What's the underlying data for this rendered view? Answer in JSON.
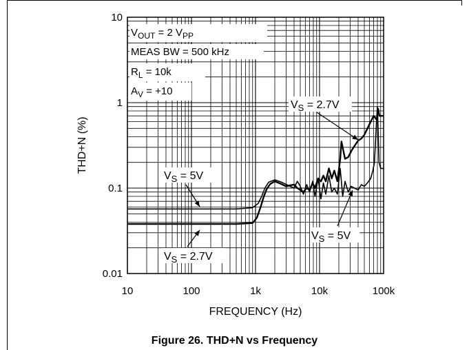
{
  "figure": {
    "caption": "Figure 26. THD+N vs Frequency"
  },
  "chart_data": {
    "type": "line",
    "xlabel": "FREQUENCY (Hz)",
    "ylabel": "THD+N (%)",
    "x_scale": "log",
    "y_scale": "log",
    "xlim": [
      10,
      100000
    ],
    "ylim": [
      0.01,
      10
    ],
    "x_ticks": [
      "10",
      "100",
      "1k",
      "10k",
      "100k"
    ],
    "y_ticks": [
      "0.01",
      "0.1",
      "1",
      "10"
    ],
    "grid": true,
    "conditions": [
      {
        "main": "V",
        "sub": "OUT",
        "rest": " = 2 V",
        "sub2": "PP"
      },
      {
        "main": "MEAS BW = 500 kHz",
        "sub": "",
        "rest": "",
        "sub2": ""
      },
      {
        "main": "R",
        "sub": "L",
        "rest": " = 10k",
        "sub2": ""
      },
      {
        "main": "A",
        "sub": "V",
        "rest": " = +10",
        "sub2": ""
      }
    ],
    "series": [
      {
        "label_main": "V",
        "label_sub": "S",
        "label_rest": " = 5V",
        "x": [
          10,
          100,
          500,
          900,
          1100,
          1250,
          1400,
          1600,
          2000,
          2500,
          3200,
          4000,
          4500,
          5000,
          5600,
          6300,
          7000,
          7800,
          8500,
          9500,
          10500,
          11500,
          12500,
          14000,
          15500,
          17000,
          19000,
          21000,
          23000,
          25000,
          28000,
          31000,
          35000,
          40000,
          45000,
          50000,
          56000,
          63000,
          68000,
          72000,
          76000,
          80000,
          85000,
          90000,
          100000
        ],
        "y": [
          0.057,
          0.057,
          0.057,
          0.059,
          0.066,
          0.08,
          0.1,
          0.117,
          0.125,
          0.118,
          0.108,
          0.1,
          0.12,
          0.105,
          0.085,
          0.11,
          0.09,
          0.12,
          0.08,
          0.13,
          0.075,
          0.115,
          0.085,
          0.14,
          0.09,
          0.1,
          0.085,
          0.17,
          0.08,
          0.12,
          0.09,
          0.105,
          0.1,
          0.095,
          0.11,
          0.105,
          0.115,
          0.13,
          0.16,
          0.2,
          0.45,
          0.9,
          0.2,
          0.17,
          0.17
        ]
      },
      {
        "label_main": "V",
        "label_sub": "S",
        "label_rest": " = 2.7V",
        "x": [
          10,
          100,
          500,
          900,
          1050,
          1200,
          1350,
          1500,
          1700,
          2000,
          2500,
          3000,
          3500,
          4000,
          4500,
          5000,
          5600,
          6300,
          7000,
          7800,
          8500,
          9500,
          10500,
          11500,
          12500,
          14000,
          15500,
          17000,
          19000,
          21000,
          22000,
          25000,
          28000,
          32000,
          36000,
          40000,
          45000,
          50000,
          56000,
          63000,
          70000,
          78000,
          82000,
          86000,
          90000,
          100000
        ],
        "y": [
          0.038,
          0.038,
          0.038,
          0.039,
          0.045,
          0.06,
          0.08,
          0.098,
          0.112,
          0.12,
          0.112,
          0.105,
          0.108,
          0.11,
          0.1,
          0.095,
          0.09,
          0.1,
          0.095,
          0.115,
          0.1,
          0.13,
          0.12,
          0.14,
          0.12,
          0.17,
          0.13,
          0.16,
          0.12,
          0.22,
          0.35,
          0.22,
          0.23,
          0.28,
          0.32,
          0.36,
          0.38,
          0.42,
          0.5,
          0.6,
          0.7,
          0.63,
          0.85,
          0.7,
          0.7,
          0.7
        ]
      }
    ]
  }
}
